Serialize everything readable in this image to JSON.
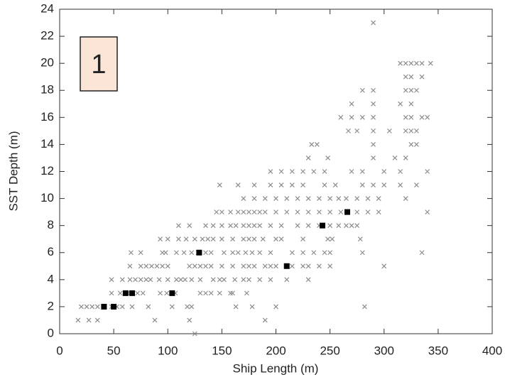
{
  "chart_data": {
    "type": "scatter",
    "xlabel": "Ship Length (m)",
    "ylabel": "SST Depth (m)",
    "annotation": "1",
    "xlim": [
      0,
      400
    ],
    "xticks": [
      0,
      50,
      100,
      150,
      200,
      250,
      300,
      350,
      400
    ],
    "ylim": [
      0,
      24
    ],
    "yticks": [
      0,
      2,
      4,
      6,
      8,
      10,
      12,
      14,
      16,
      18,
      20,
      22,
      24
    ],
    "series": [
      {
        "color": "#8c8c8c",
        "marker": "x",
        "x": [
          125,
          17,
          27,
          35,
          88,
          120,
          190,
          20,
          25,
          30,
          35,
          41,
          48,
          53,
          58,
          67,
          82,
          104,
          118,
          122,
          163,
          178,
          200,
          282,
          48,
          56,
          63,
          72,
          77,
          93,
          99,
          107,
          130,
          135,
          140,
          148,
          158,
          160,
          173,
          48,
          58,
          65,
          70,
          75,
          80,
          84,
          92,
          100,
          108,
          112,
          116,
          122,
          130,
          142,
          148,
          152,
          162,
          170,
          175,
          185,
          195,
          210,
          230,
          65,
          75,
          80,
          85,
          90,
          95,
          100,
          120,
          125,
          130,
          135,
          140,
          150,
          160,
          170,
          175,
          180,
          190,
          195,
          200,
          215,
          225,
          230,
          240,
          250,
          300,
          66,
          75,
          95,
          98,
          108,
          115,
          122,
          128,
          135,
          140,
          152,
          160,
          165,
          172,
          178,
          185,
          195,
          215,
          225,
          235,
          245,
          250,
          280,
          335,
          93,
          100,
          110,
          117,
          125,
          132,
          137,
          142,
          150,
          160,
          170,
          175,
          180,
          188,
          200,
          205,
          225,
          248,
          252,
          278,
          110,
          120,
          135,
          142,
          150,
          158,
          163,
          170,
          175,
          180,
          185,
          195,
          205,
          220,
          230,
          240,
          250,
          258,
          265,
          270,
          275,
          145,
          150,
          158,
          165,
          170,
          175,
          180,
          185,
          190,
          200,
          210,
          220,
          230,
          240,
          250,
          260,
          275,
          285,
          295,
          340,
          170,
          180,
          190,
          200,
          210,
          220,
          230,
          240,
          250,
          258,
          265,
          275,
          285,
          295,
          320,
          148,
          165,
          180,
          195,
          205,
          215,
          225,
          245,
          255,
          280,
          290,
          300,
          315,
          330,
          195,
          205,
          215,
          225,
          235,
          245,
          270,
          280,
          300,
          315,
          340,
          230,
          248,
          290,
          310,
          320,
          233,
          238,
          290,
          325,
          330,
          267,
          275,
          290,
          305,
          320,
          325,
          330,
          260,
          270,
          280,
          290,
          320,
          325,
          335,
          340,
          270,
          290,
          315,
          325,
          280,
          290,
          320,
          325,
          330,
          320,
          325,
          335,
          315,
          320,
          325,
          330,
          335,
          343,
          290
        ],
        "values": [
          0,
          1,
          1,
          1,
          1,
          1,
          1,
          2,
          2,
          2,
          2,
          2,
          2,
          2,
          2,
          2,
          2,
          2,
          2,
          2,
          2,
          2,
          2,
          2,
          3,
          3,
          3,
          3,
          3,
          3,
          3,
          3,
          3,
          3,
          3,
          3,
          3,
          3,
          3,
          4,
          4,
          4,
          4,
          4,
          4,
          4,
          4,
          4,
          4,
          4,
          4,
          4,
          4,
          4,
          4,
          4,
          4,
          4,
          4,
          4,
          4,
          4,
          4,
          5,
          5,
          5,
          5,
          5,
          5,
          5,
          5,
          5,
          5,
          5,
          5,
          5,
          5,
          5,
          5,
          5,
          5,
          5,
          5,
          5,
          5,
          5,
          5,
          5,
          5,
          6,
          6,
          6,
          6,
          6,
          6,
          6,
          6,
          6,
          6,
          6,
          6,
          6,
          6,
          6,
          6,
          6,
          6,
          6,
          6,
          6,
          6,
          6,
          6,
          7,
          7,
          7,
          7,
          7,
          7,
          7,
          7,
          7,
          7,
          7,
          7,
          7,
          7,
          7,
          7,
          7,
          7,
          7,
          7,
          8,
          8,
          8,
          8,
          8,
          8,
          8,
          8,
          8,
          8,
          8,
          8,
          8,
          8,
          8,
          8,
          8,
          8,
          8,
          8,
          8,
          9,
          9,
          9,
          9,
          9,
          9,
          9,
          9,
          9,
          9,
          9,
          9,
          9,
          9,
          9,
          9,
          9,
          9,
          9,
          9,
          10,
          10,
          10,
          10,
          10,
          10,
          10,
          10,
          10,
          10,
          10,
          10,
          10,
          10,
          10,
          11,
          11,
          11,
          11,
          11,
          11,
          11,
          11,
          11,
          11,
          11,
          11,
          11,
          11,
          12,
          12,
          12,
          12,
          12,
          12,
          12,
          12,
          12,
          12,
          12,
          13,
          13,
          13,
          13,
          13,
          14,
          14,
          14,
          14,
          14,
          15,
          15,
          15,
          15,
          15,
          15,
          15,
          16,
          16,
          16,
          16,
          16,
          16,
          16,
          16,
          17,
          17,
          17,
          17,
          18,
          18,
          18,
          18,
          18,
          19,
          19,
          19,
          20,
          20,
          20,
          20,
          20,
          20,
          23
        ]
      },
      {
        "color": "#000000",
        "marker": "square",
        "x": [
          41,
          50,
          61,
          67,
          104,
          129,
          210,
          243,
          266
        ],
        "values": [
          2,
          2,
          3,
          3,
          3,
          6,
          5,
          8,
          9
        ]
      }
    ]
  }
}
